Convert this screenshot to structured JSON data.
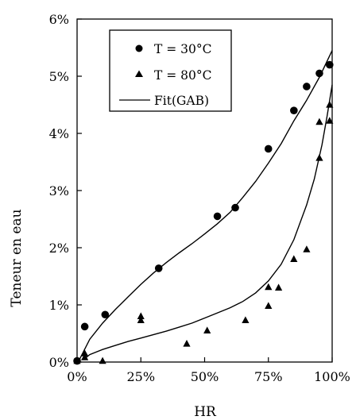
{
  "chart_data": {
    "type": "scatter",
    "xlabel": "HR",
    "ylabel": "Teneur en eau",
    "xlim": [
      0,
      100
    ],
    "ylim": [
      0,
      6
    ],
    "x_ticks": [
      0,
      25,
      50,
      75,
      100
    ],
    "y_ticks": [
      0,
      1,
      2,
      3,
      4,
      5,
      6
    ],
    "x_tick_labels": [
      "0%",
      "25%",
      "50%",
      "75%",
      "100%"
    ],
    "y_tick_labels": [
      "0%",
      "1%",
      "2%",
      "3%",
      "4%",
      "5%",
      "6%"
    ],
    "legend_position": "top-left",
    "grid": false,
    "series": [
      {
        "name": "T = 30°C",
        "marker": "circle",
        "color": "#000000",
        "points": [
          [
            0,
            0.02
          ],
          [
            3,
            0.62
          ],
          [
            11,
            0.83
          ],
          [
            32,
            1.64
          ],
          [
            55,
            2.55
          ],
          [
            62,
            2.7
          ],
          [
            75,
            3.73
          ],
          [
            85,
            4.4
          ],
          [
            90,
            4.82
          ],
          [
            95,
            5.05
          ],
          [
            99,
            5.2
          ]
        ]
      },
      {
        "name": "T = 80°C",
        "marker": "triangle",
        "color": "#000000",
        "points": [
          [
            0,
            0.02
          ],
          [
            3,
            0.08
          ],
          [
            3,
            0.15
          ],
          [
            10,
            0.02
          ],
          [
            25,
            0.8
          ],
          [
            25,
            0.73
          ],
          [
            43,
            0.32
          ],
          [
            51,
            0.55
          ],
          [
            66,
            0.73
          ],
          [
            75,
            1.31
          ],
          [
            75,
            0.98
          ],
          [
            79,
            1.3
          ],
          [
            85,
            1.8
          ],
          [
            90,
            1.97
          ],
          [
            95,
            3.57
          ],
          [
            95,
            4.2
          ],
          [
            99,
            4.5
          ],
          [
            99,
            4.22
          ]
        ]
      },
      {
        "name": "Fit(GAB)",
        "marker": "line",
        "color": "#000000",
        "curves": [
          [
            [
              1,
              0.05
            ],
            [
              5,
              0.4
            ],
            [
              10,
              0.68
            ],
            [
              15,
              0.92
            ],
            [
              20,
              1.14
            ],
            [
              25,
              1.36
            ],
            [
              30,
              1.56
            ],
            [
              35,
              1.74
            ],
            [
              40,
              1.91
            ],
            [
              45,
              2.07
            ],
            [
              50,
              2.24
            ],
            [
              55,
              2.42
            ],
            [
              60,
              2.62
            ],
            [
              65,
              2.88
            ],
            [
              70,
              3.16
            ],
            [
              75,
              3.48
            ],
            [
              80,
              3.82
            ],
            [
              85,
              4.22
            ],
            [
              90,
              4.58
            ],
            [
              95,
              4.98
            ],
            [
              100,
              5.45
            ]
          ],
          [
            [
              3,
              0.06
            ],
            [
              5,
              0.13
            ],
            [
              10,
              0.22
            ],
            [
              15,
              0.29
            ],
            [
              20,
              0.36
            ],
            [
              25,
              0.42
            ],
            [
              30,
              0.48
            ],
            [
              35,
              0.54
            ],
            [
              40,
              0.61
            ],
            [
              45,
              0.68
            ],
            [
              50,
              0.77
            ],
            [
              55,
              0.86
            ],
            [
              60,
              0.95
            ],
            [
              65,
              1.06
            ],
            [
              70,
              1.21
            ],
            [
              75,
              1.42
            ],
            [
              80,
              1.71
            ],
            [
              85,
              2.14
            ],
            [
              90,
              2.75
            ],
            [
              93,
              3.2
            ],
            [
              96,
              3.8
            ],
            [
              98,
              4.3
            ],
            [
              100,
              4.85
            ]
          ]
        ]
      }
    ]
  }
}
